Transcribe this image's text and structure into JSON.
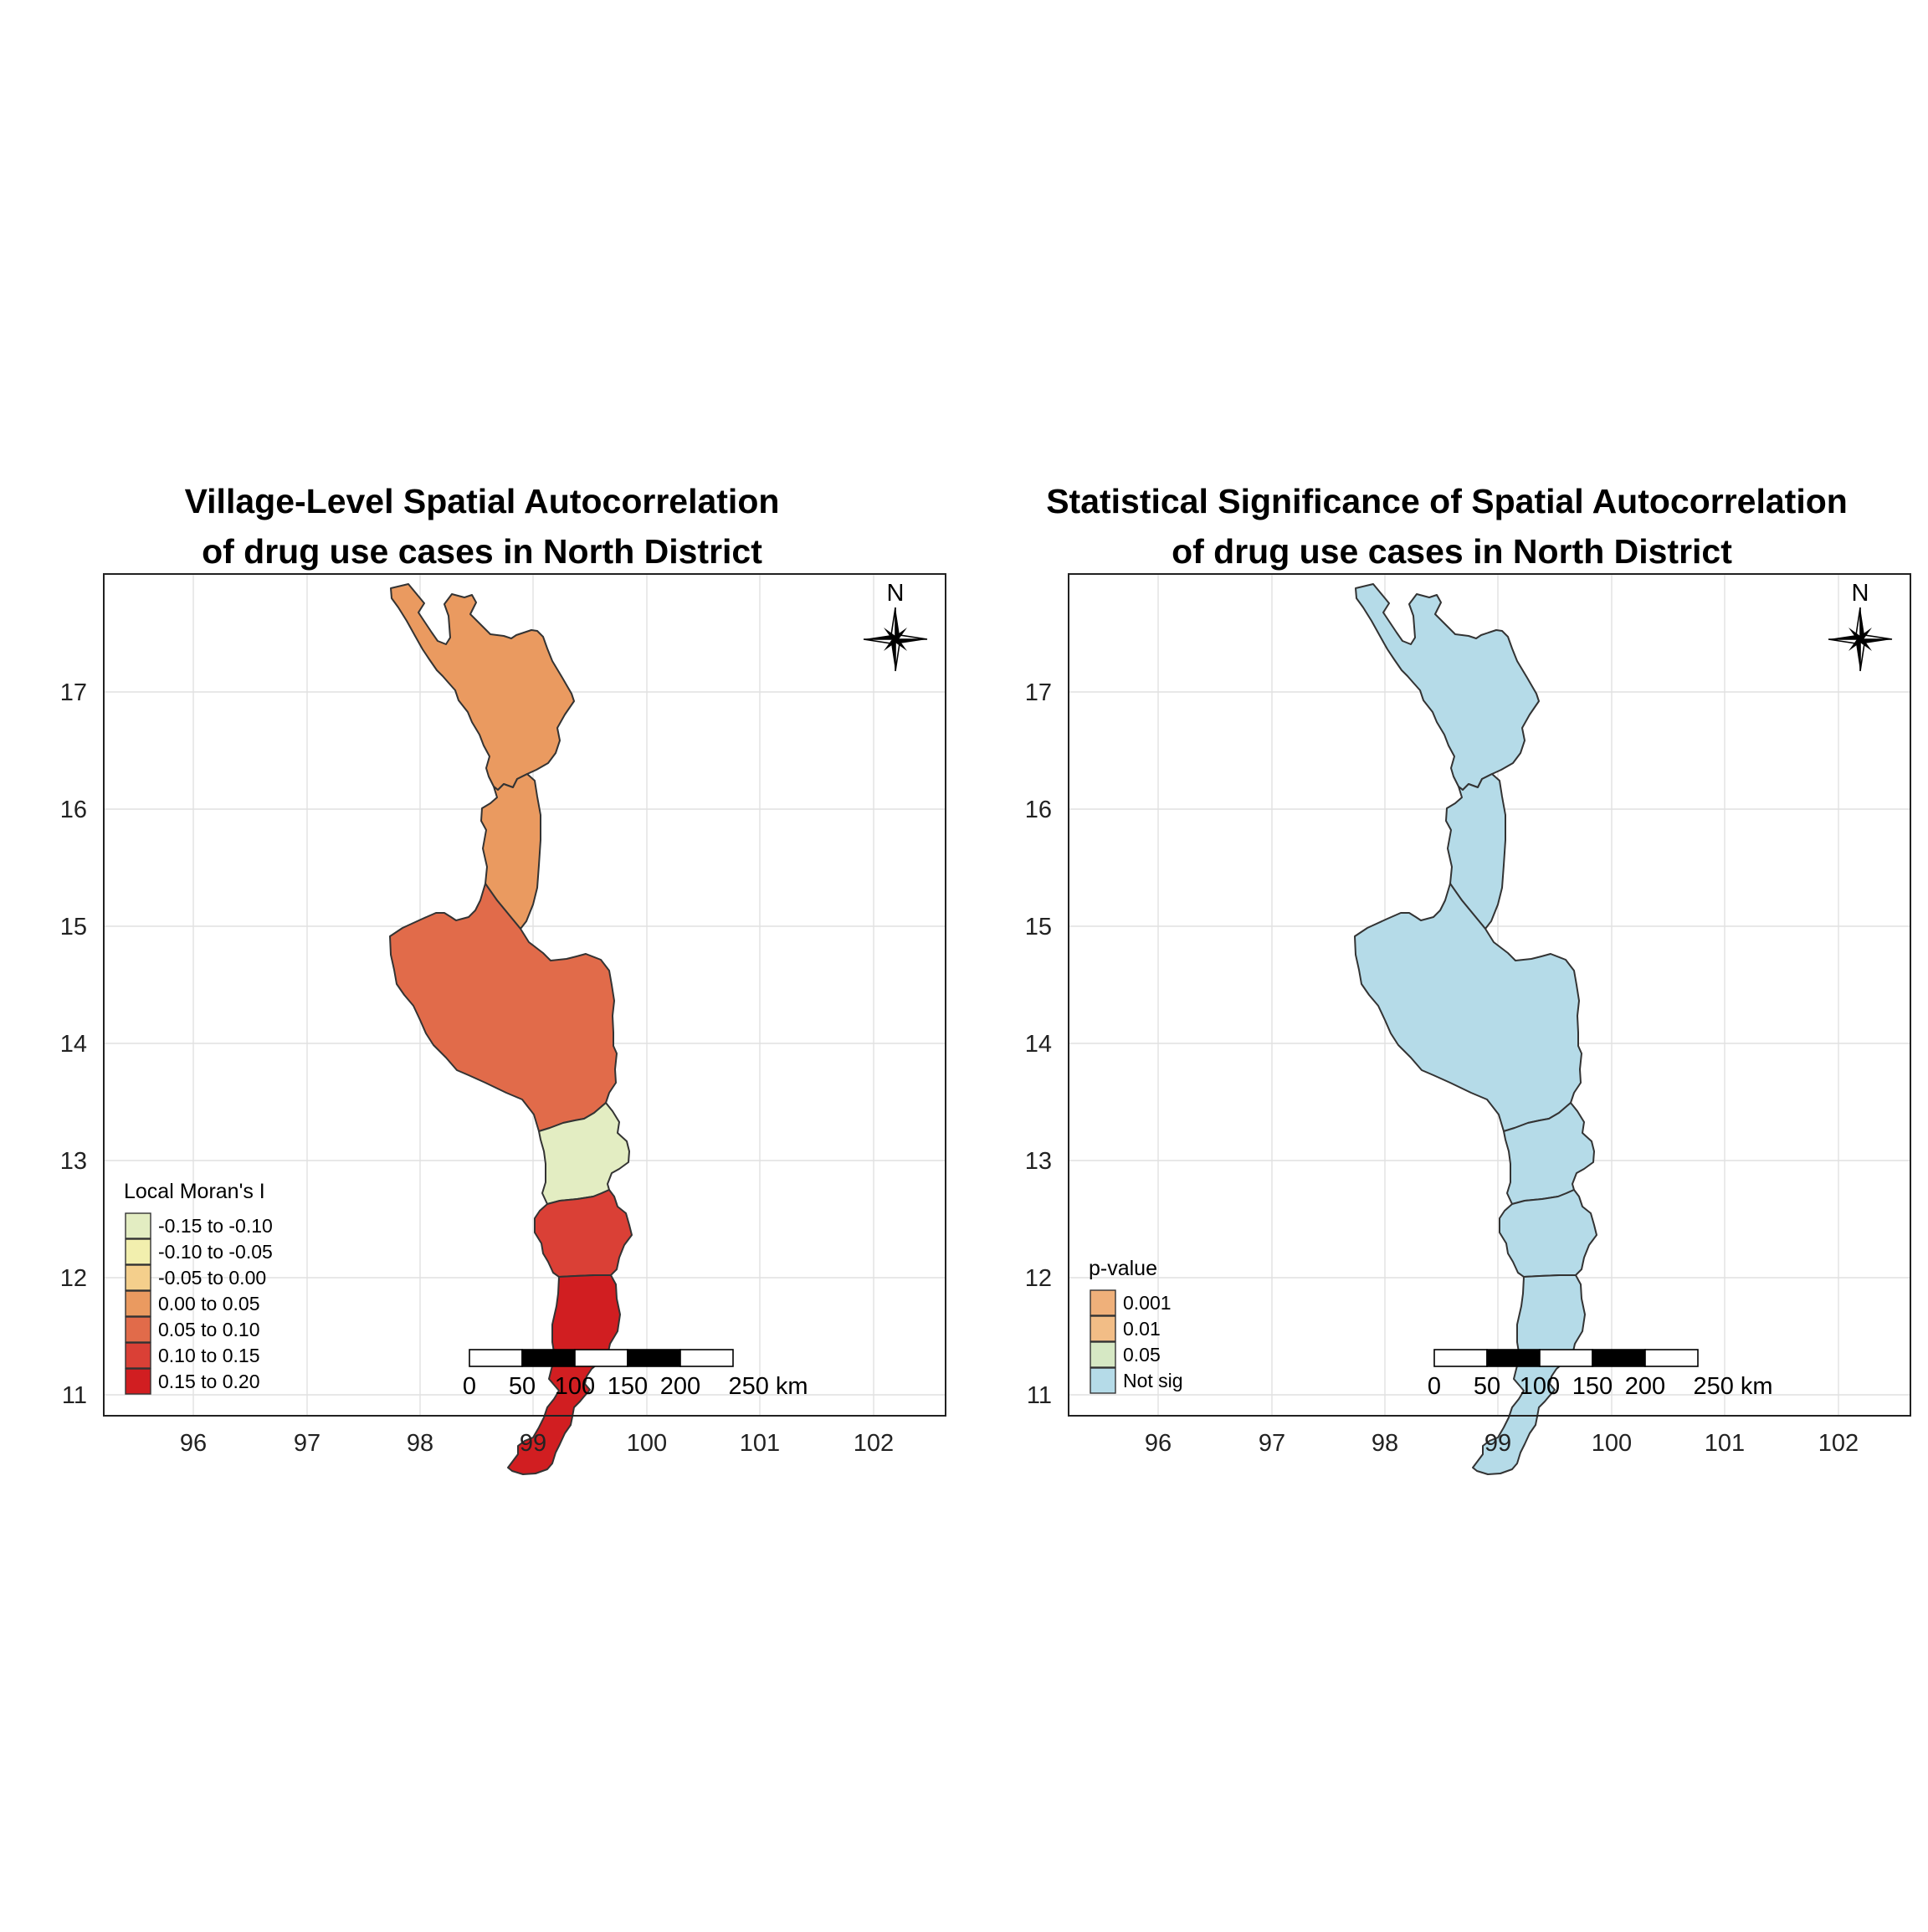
{
  "x_ticks": [
    "96",
    "97",
    "98",
    "99",
    "100",
    "101",
    "102"
  ],
  "y_ticks": [
    "17",
    "16",
    "15",
    "14",
    "13",
    "12",
    "11"
  ],
  "scale_bar": {
    "labels": [
      "0",
      "50",
      "100",
      "150",
      "200",
      "250 km"
    ]
  },
  "north_arrow": {
    "label": "N",
    "icon": "compass-rose-icon"
  },
  "panels": [
    {
      "title_line1": "Village-Level Spatial Autocorrelation",
      "title_line2": "of drug use cases in North District",
      "legend": {
        "title": "Local Moran's I",
        "items": [
          {
            "label": "-0.15 to -0.10",
            "color": "#e3edc2"
          },
          {
            "label": "-0.10 to -0.05",
            "color": "#f2efae"
          },
          {
            "label": "-0.05 to 0.00",
            "color": "#f4cf8c"
          },
          {
            "label": "0.00 to 0.05",
            "color": "#ea9a60"
          },
          {
            "label": "0.05 to 0.10",
            "color": "#e16b4a"
          },
          {
            "label": "0.10 to 0.15",
            "color": "#da4036"
          },
          {
            "label": "0.15 to 0.20",
            "color": "#d11e21"
          }
        ]
      },
      "region_colors": [
        "#ea9a60",
        "#ea9a60",
        "#e16b4a",
        "#e3edc2",
        "#da4036",
        "#d11e21"
      ]
    },
    {
      "title_line1": "Statistical Significance of Spatial Autocorrelation",
      "title_line2": "of drug use cases in North District",
      "legend": {
        "title": "p-value",
        "items": [
          {
            "label": "0.001",
            "color": "#efb07a"
          },
          {
            "label": "0.01",
            "color": "#f2bd86"
          },
          {
            "label": "0.05",
            "color": "#d6e8c4"
          },
          {
            "label": "Not sig",
            "color": "#b5dbe8"
          }
        ]
      },
      "region_colors": [
        "#b5dbe8",
        "#b5dbe8",
        "#b5dbe8",
        "#b5dbe8",
        "#b5dbe8",
        "#b5dbe8"
      ]
    }
  ]
}
